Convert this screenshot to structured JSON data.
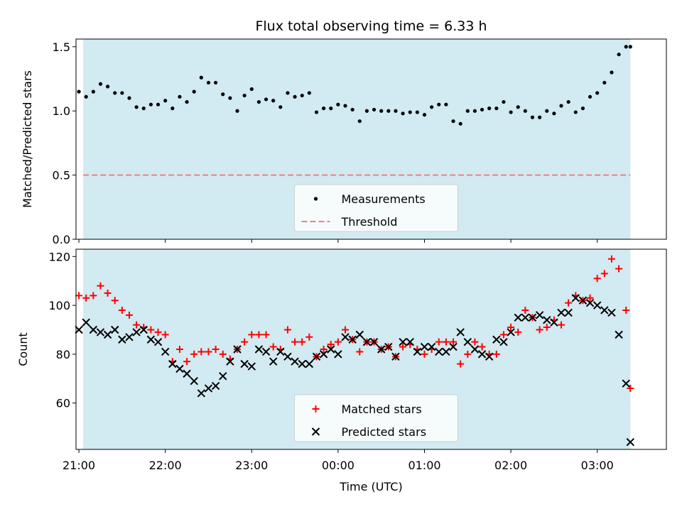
{
  "chart_data": [
    {
      "type": "scatter",
      "title": "Flux total observing time = 6.33 h",
      "xlabel": "",
      "ylabel": "Matched/Predicted stars",
      "xlim": [
        "20:58",
        "03:48"
      ],
      "ylim": [
        0,
        1.56
      ],
      "yticks": [
        "0.0",
        "0.5",
        "1.0",
        "1.5"
      ],
      "shaded_span": [
        "21:03",
        "03:23"
      ],
      "shade_color": "#add8e6",
      "legend_position": "lower center",
      "series": [
        {
          "name": "Measurements",
          "marker": "dot",
          "color": "#000000",
          "x": [
            "21:00",
            "21:05",
            "21:10",
            "21:15",
            "21:20",
            "21:25",
            "21:30",
            "21:35",
            "21:40",
            "21:45",
            "21:50",
            "21:55",
            "22:00",
            "22:05",
            "22:10",
            "22:15",
            "22:20",
            "22:25",
            "22:30",
            "22:35",
            "22:40",
            "22:45",
            "22:50",
            "22:55",
            "23:00",
            "23:05",
            "23:10",
            "23:15",
            "23:20",
            "23:25",
            "23:30",
            "23:35",
            "23:40",
            "23:45",
            "23:50",
            "23:55",
            "00:00",
            "00:05",
            "00:10",
            "00:15",
            "00:20",
            "00:25",
            "00:30",
            "00:35",
            "00:40",
            "00:45",
            "00:50",
            "00:55",
            "01:00",
            "01:05",
            "01:10",
            "01:15",
            "01:20",
            "01:25",
            "01:30",
            "01:35",
            "01:40",
            "01:45",
            "01:50",
            "01:55",
            "02:00",
            "02:05",
            "02:10",
            "02:15",
            "02:20",
            "02:25",
            "02:30",
            "02:35",
            "02:40",
            "02:45",
            "02:50",
            "02:55",
            "03:00",
            "03:05",
            "03:10",
            "03:15",
            "03:20",
            "03:23"
          ],
          "y": [
            1.15,
            1.11,
            1.15,
            1.21,
            1.19,
            1.14,
            1.14,
            1.1,
            1.03,
            1.02,
            1.05,
            1.05,
            1.08,
            1.02,
            1.11,
            1.07,
            1.15,
            1.26,
            1.22,
            1.22,
            1.13,
            1.1,
            1.0,
            1.12,
            1.17,
            1.07,
            1.09,
            1.08,
            1.03,
            1.14,
            1.11,
            1.12,
            1.14,
            0.99,
            1.02,
            1.02,
            1.05,
            1.04,
            1.01,
            0.92,
            1.0,
            1.01,
            1.0,
            1.0,
            1.0,
            0.98,
            0.99,
            0.99,
            0.97,
            1.03,
            1.05,
            1.05,
            0.92,
            0.9,
            1.0,
            1.0,
            1.01,
            1.02,
            1.02,
            1.07,
            0.99,
            1.03,
            1.0,
            0.95,
            0.95,
            1.0,
            0.98,
            1.04,
            1.07,
            0.99,
            1.02,
            1.11,
            1.14,
            1.22,
            1.3,
            1.44,
            1.5,
            1.5
          ]
        },
        {
          "name": "Threshold",
          "style": "dashed",
          "color": "#f08080",
          "x": [
            "21:03",
            "03:23"
          ],
          "y": [
            0.5,
            0.5
          ]
        }
      ]
    },
    {
      "type": "scatter",
      "title": "",
      "xlabel": "Time (UTC)",
      "ylabel": "Count",
      "xlim": [
        "20:58",
        "03:48"
      ],
      "ylim": [
        41,
        123
      ],
      "yticks": [
        "60",
        "80",
        "100",
        "120"
      ],
      "xticks": [
        "21:00",
        "22:00",
        "23:00",
        "00:00",
        "01:00",
        "02:00",
        "03:00"
      ],
      "shaded_span": [
        "21:03",
        "03:23"
      ],
      "shade_color": "#add8e6",
      "legend_position": "lower center",
      "series": [
        {
          "name": "Matched stars",
          "marker": "plus",
          "color": "#ff0000",
          "x": [
            "21:00",
            "21:05",
            "21:10",
            "21:15",
            "21:20",
            "21:25",
            "21:30",
            "21:35",
            "21:40",
            "21:45",
            "21:50",
            "21:55",
            "22:00",
            "22:05",
            "22:10",
            "22:15",
            "22:20",
            "22:25",
            "22:30",
            "22:35",
            "22:40",
            "22:45",
            "22:50",
            "22:55",
            "23:00",
            "23:05",
            "23:10",
            "23:15",
            "23:20",
            "23:25",
            "23:30",
            "23:35",
            "23:40",
            "23:45",
            "23:50",
            "23:55",
            "00:00",
            "00:05",
            "00:10",
            "00:15",
            "00:20",
            "00:25",
            "00:30",
            "00:35",
            "00:40",
            "00:45",
            "00:50",
            "00:55",
            "01:00",
            "01:05",
            "01:10",
            "01:15",
            "01:20",
            "01:25",
            "01:30",
            "01:35",
            "01:40",
            "01:45",
            "01:50",
            "01:55",
            "02:00",
            "02:05",
            "02:10",
            "02:15",
            "02:20",
            "02:25",
            "02:30",
            "02:35",
            "02:40",
            "02:45",
            "02:50",
            "02:55",
            "03:00",
            "03:05",
            "03:10",
            "03:15",
            "03:20",
            "03:23"
          ],
          "y": [
            104,
            103,
            104,
            108,
            105,
            102,
            98,
            96,
            92,
            91,
            90,
            89,
            88,
            77,
            82,
            77,
            80,
            81,
            81,
            82,
            80,
            78,
            82,
            85,
            88,
            88,
            88,
            83,
            82,
            90,
            85,
            85,
            87,
            79,
            82,
            84,
            85,
            90,
            86,
            81,
            85,
            85,
            82,
            83,
            79,
            83,
            84,
            82,
            80,
            82,
            85,
            85,
            85,
            76,
            80,
            85,
            83,
            80,
            80,
            88,
            91,
            89,
            98,
            95,
            90,
            91,
            94,
            92,
            101,
            104,
            102,
            103,
            111,
            113,
            119,
            115,
            98,
            66
          ]
        },
        {
          "name": "Predicted stars",
          "marker": "x",
          "color": "#000000",
          "x": [
            "21:00",
            "21:05",
            "21:10",
            "21:15",
            "21:20",
            "21:25",
            "21:30",
            "21:35",
            "21:40",
            "21:45",
            "21:50",
            "21:55",
            "22:00",
            "22:05",
            "22:10",
            "22:15",
            "22:20",
            "22:25",
            "22:30",
            "22:35",
            "22:40",
            "22:45",
            "22:50",
            "22:55",
            "23:00",
            "23:05",
            "23:10",
            "23:15",
            "23:20",
            "23:25",
            "23:30",
            "23:35",
            "23:40",
            "23:45",
            "23:50",
            "23:55",
            "00:00",
            "00:05",
            "00:10",
            "00:15",
            "00:20",
            "00:25",
            "00:30",
            "00:35",
            "00:40",
            "00:45",
            "00:50",
            "00:55",
            "01:00",
            "01:05",
            "01:10",
            "01:15",
            "01:20",
            "01:25",
            "01:30",
            "01:35",
            "01:40",
            "01:45",
            "01:50",
            "01:55",
            "02:00",
            "02:05",
            "02:10",
            "02:15",
            "02:20",
            "02:25",
            "02:30",
            "02:35",
            "02:40",
            "02:45",
            "02:50",
            "02:55",
            "03:00",
            "03:05",
            "03:10",
            "03:15",
            "03:20",
            "03:23"
          ],
          "y": [
            90,
            93,
            90,
            89,
            88,
            90,
            86,
            87,
            89,
            90,
            86,
            85,
            81,
            76,
            74,
            72,
            69,
            64,
            66,
            67,
            71,
            77,
            82,
            76,
            75,
            82,
            81,
            77,
            81,
            79,
            77,
            76,
            76,
            79,
            80,
            82,
            80,
            87,
            86,
            88,
            85,
            85,
            82,
            83,
            79,
            85,
            85,
            81,
            83,
            83,
            81,
            81,
            83,
            89,
            85,
            82,
            80,
            79,
            86,
            85,
            89,
            95,
            95,
            95,
            96,
            94,
            93,
            97,
            97,
            103,
            102,
            101,
            100,
            98,
            97,
            88,
            68,
            44
          ]
        }
      ]
    }
  ]
}
